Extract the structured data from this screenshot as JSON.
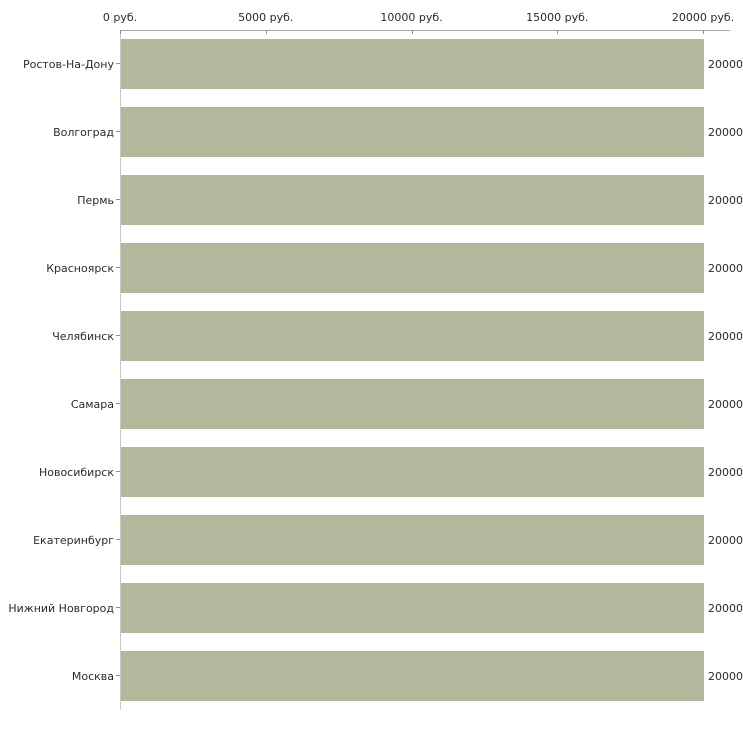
{
  "chart_data": {
    "type": "bar",
    "orientation": "horizontal",
    "title": "",
    "xlabel": "",
    "ylabel": "",
    "xlim": [
      0,
      20000
    ],
    "grid": false,
    "legend": "none",
    "categories": [
      "Ростов-На-Дону",
      "Волгоград",
      "Пермь",
      "Красноярск",
      "Челябинск",
      "Самара",
      "Новосибирск",
      "Екатеринбург",
      "Нижний Новгород",
      "Москва"
    ],
    "values": [
      20000,
      20000,
      20000,
      20000,
      20000,
      20000,
      20000,
      20000,
      20000,
      20000
    ],
    "value_labels": [
      "20000",
      "20000",
      "20000",
      "20000",
      "20000",
      "20000",
      "20000",
      "20000",
      "20000",
      "20000"
    ],
    "x_ticks": [
      {
        "value": 0,
        "label": "0 руб."
      },
      {
        "value": 5000,
        "label": "5000 руб."
      },
      {
        "value": 10000,
        "label": "10000 руб."
      },
      {
        "value": 15000,
        "label": "15000 руб."
      },
      {
        "value": 20000,
        "label": "20000 руб."
      }
    ],
    "colors": {
      "bar": "#b3b89c",
      "axis": "#ababab",
      "text": "#2b2b2b",
      "background": "#ffffff"
    }
  }
}
